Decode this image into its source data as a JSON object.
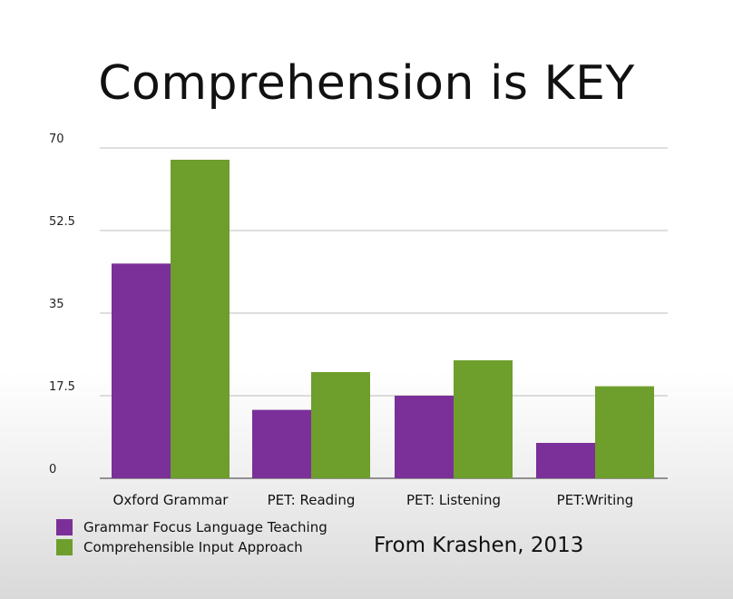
{
  "title": "Comprehension is KEY",
  "source": "From Krashen,  2013",
  "colors": {
    "series1": "#7b2f98",
    "series2": "#6e9e2c",
    "grid": "#bdbdbd",
    "axis": "#333333"
  },
  "chart_data": {
    "type": "bar",
    "categories": [
      "Oxford Grammar",
      "PET: Reading",
      "PET: Listening",
      "PET:Writing"
    ],
    "series": [
      {
        "name": "Grammar Focus Language Teaching",
        "values": [
          45.5,
          14.5,
          17.5,
          7.5
        ]
      },
      {
        "name": "Comprehensible Input Approach",
        "values": [
          67.5,
          22.5,
          25,
          19.5
        ]
      }
    ],
    "yticks": [
      "0",
      "17.5",
      "35",
      "52.5",
      "70"
    ],
    "ylim": [
      0,
      70
    ],
    "grid": true,
    "legend_position": "bottom-left"
  }
}
